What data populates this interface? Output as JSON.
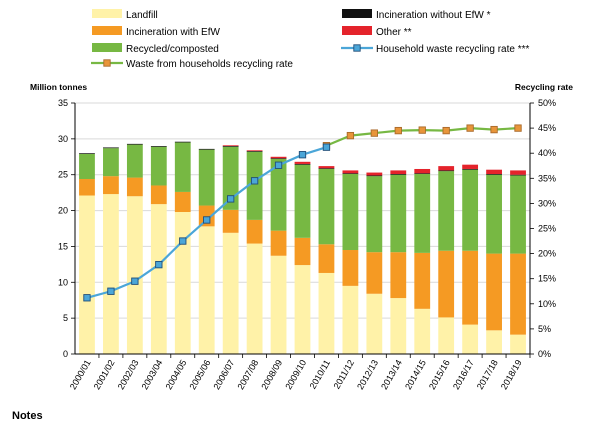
{
  "chart_data": {
    "type": "bar",
    "stacked": true,
    "categories": [
      "2000/01",
      "2001/02",
      "2002/03",
      "2003/04",
      "2004/05",
      "2005/06",
      "2006/07",
      "2007/08",
      "2008/09",
      "2009/10",
      "2010/11",
      "2011/12",
      "2012/13",
      "2013/14",
      "2014/15",
      "2015/16",
      "2016/17",
      "2017/18",
      "2018/19"
    ],
    "series": [
      {
        "name": "Landfill",
        "color": "#fff2a8",
        "values": [
          22.1,
          22.3,
          22.0,
          20.9,
          19.8,
          17.8,
          16.9,
          15.4,
          13.7,
          12.4,
          11.3,
          9.5,
          8.4,
          7.8,
          6.3,
          5.1,
          4.1,
          3.3,
          2.7
        ]
      },
      {
        "name": "Incineration with EfW",
        "color": "#f59a23",
        "values": [
          2.3,
          2.5,
          2.6,
          2.6,
          2.8,
          2.9,
          3.2,
          3.3,
          3.5,
          3.8,
          4.0,
          5.0,
          5.8,
          6.4,
          7.8,
          9.3,
          10.3,
          10.7,
          11.3
        ]
      },
      {
        "name": "Recycled/composted",
        "color": "#77b843",
        "values": [
          3.5,
          3.9,
          4.6,
          5.4,
          6.9,
          7.8,
          8.8,
          9.5,
          10.0,
          10.2,
          10.5,
          10.6,
          10.6,
          10.8,
          11.0,
          11.1,
          11.3,
          11.0,
          10.9
        ]
      },
      {
        "name": "Incineration without EfW *",
        "color": "#111111",
        "values": [
          0.1,
          0.1,
          0.1,
          0.1,
          0.1,
          0.1,
          0.1,
          0.1,
          0.1,
          0.1,
          0.1,
          0.1,
          0.1,
          0.1,
          0.1,
          0.1,
          0.1,
          0.1,
          0.1
        ]
      },
      {
        "name": "Other **",
        "color": "#e4232b",
        "values": [
          0.0,
          0.0,
          0.0,
          0.0,
          0.0,
          0.0,
          0.1,
          0.1,
          0.2,
          0.3,
          0.3,
          0.4,
          0.4,
          0.5,
          0.6,
          0.6,
          0.6,
          0.6,
          0.6
        ]
      }
    ],
    "lines": [
      {
        "name": "Waste from households recycling rate",
        "color": "#77b843",
        "marker_fill": "#e8953a",
        "marker_stroke": "#a9692a",
        "values": [
          null,
          null,
          null,
          null,
          null,
          null,
          null,
          null,
          null,
          null,
          41.5,
          43.5,
          44.0,
          44.5,
          44.6,
          44.5,
          45.0,
          44.7,
          45.0
        ]
      },
      {
        "name": "Household waste recycling rate ***",
        "color": "#4ba6d8",
        "marker_fill": "#4ba6d8",
        "marker_stroke": "#1f4e79",
        "values": [
          11.2,
          12.5,
          14.5,
          17.8,
          22.5,
          26.7,
          30.9,
          34.5,
          37.6,
          39.7,
          41.2,
          null,
          null,
          null,
          null,
          null,
          null,
          null,
          null
        ]
      }
    ],
    "ylabel": "Million tonnes",
    "ylim": [
      0,
      35
    ],
    "yticks": [
      "0",
      "5",
      "10",
      "15",
      "20",
      "25",
      "30",
      "35"
    ],
    "y2label": "Recycling rate",
    "y2lim": [
      0,
      50
    ],
    "y2ticks": [
      "0%",
      "5%",
      "10%",
      "15%",
      "20%",
      "25%",
      "30%",
      "35%",
      "40%",
      "45%",
      "50%"
    ],
    "grid": true,
    "legend_position": "top"
  },
  "notes_heading": "Notes"
}
